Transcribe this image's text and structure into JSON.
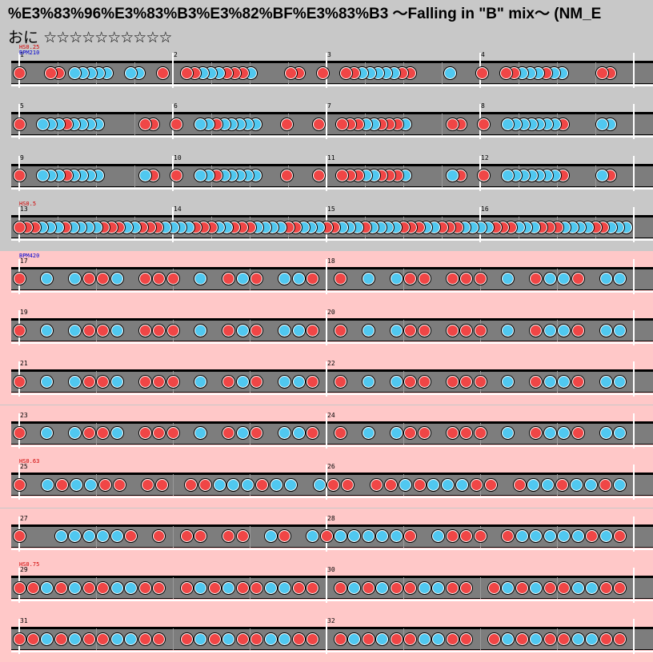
{
  "title": "%E3%83%96%E3%83%B3%E3%82%BF%E3%83%B3 ～Falling in \"B\" mix～ (NM_E",
  "difficulty": {
    "label": "おに",
    "stars": "☆☆☆☆☆☆☆☆☆☆"
  },
  "colors": {
    "don": "#f04646",
    "ka": "#50c8f0",
    "lane": "#7d7d7d",
    "rowGray": "#c8c8c8",
    "rowPink": "#ffc8c8",
    "hs": "#d00000",
    "bpm": "#0000d0"
  },
  "rows": [
    {
      "bg": "gray",
      "measures": [
        "1",
        "2",
        "3",
        "4"
      ],
      "annotations": [
        {
          "text": "HS0.25",
          "color": "hs"
        },
        {
          "text": "BPM210",
          "color": "bpm"
        }
      ],
      "notes": "d...dd.kkkkk..kk..d..ddkkkdddk....dd..d..ddkkkkkdd....k...d..ddkkkdkk....dd.."
    },
    {
      "bg": "gray",
      "measures": [
        "5",
        "6",
        "7",
        "8"
      ],
      "annotations": [],
      "notes": "d..kkkdkkkk.....dd..d..kkdkkkkk...d...d..dddkkdddk.....dd..d..kkkkkkkd....kk.."
    },
    {
      "bg": "gray",
      "measures": [
        "9",
        "10",
        "11",
        "12"
      ],
      "annotations": [],
      "notes": "d..kkkdkkkk.....kd..d..kkdkkkkk...d...d..dddkkdddk.....kd..d..kkkkkkkd....kd.."
    },
    {
      "bg": "gray",
      "measures": [
        "13",
        "14",
        "15",
        "16"
      ],
      "annotations": [
        {
          "text": "HS0.5",
          "color": "hs"
        }
      ],
      "notes": "dddkkkdkkkkdddkkdddkkkkdddkkdddkkkkddkkkddkkkdkkkkdddkkdddkkkkdddkkkdddkkkkddkkk"
    },
    {
      "bg": "pink",
      "measures": [
        "17",
        "18"
      ],
      "annotations": [
        {
          "text": "BPM420",
          "color": "bpm"
        }
      ],
      "notes": "d.k.kddk.ddd.k.dkd.kkd.d.k.kdd.ddd.k.dkkd.kk"
    },
    {
      "bg": "pink",
      "measures": [
        "19",
        "20"
      ],
      "annotations": [],
      "notes": "d.k.kddk.ddd.k.dkd.kkd.d.k.kdd.ddd.k.dkkd.kk"
    },
    {
      "bg": "pink",
      "measures": [
        "21",
        "22"
      ],
      "annotations": [],
      "notes": "d.k.kddk.ddd.k.dkd.kkd.d.k.kdd.ddd.k.dkkd.kk"
    },
    {
      "bg": "pink",
      "measures": [
        "23",
        "24"
      ],
      "annotations": [],
      "notes": "d.k.kddk.ddd.k.dkd.kkd.d.k.kdd.ddd.k.dkkd.kk"
    },
    {
      "bg": "pink",
      "measures": [
        "25",
        "26"
      ],
      "annotations": [
        {
          "text": "HS0.63",
          "color": "hs"
        }
      ],
      "notes": "d.kdkkdd.dd.ddkkkdkk.kdd.ddkdkkkdd.dkkdkkdk"
    },
    {
      "bg": "pink",
      "measures": [
        "27",
        "28"
      ],
      "annotations": [],
      "notes": "d..kkkkkd.d.dd.dd.kd.kdkkkkkd.kddd.dkkkkkdkd"
    },
    {
      "bg": "pink",
      "measures": [
        "29",
        "30"
      ],
      "annotations": [
        {
          "text": "HS0.75",
          "color": "hs"
        }
      ],
      "notes": "ddkdkddkkdd.dkdkddkkdd.dkdkddkkdd.dkdkddkkdd"
    },
    {
      "bg": "pink",
      "measures": [
        "31",
        "32"
      ],
      "annotations": [],
      "notes": "ddkdkddkkdd.dkdkddkkdd.dkdkddkkdd.dkdkddkkdd"
    }
  ]
}
